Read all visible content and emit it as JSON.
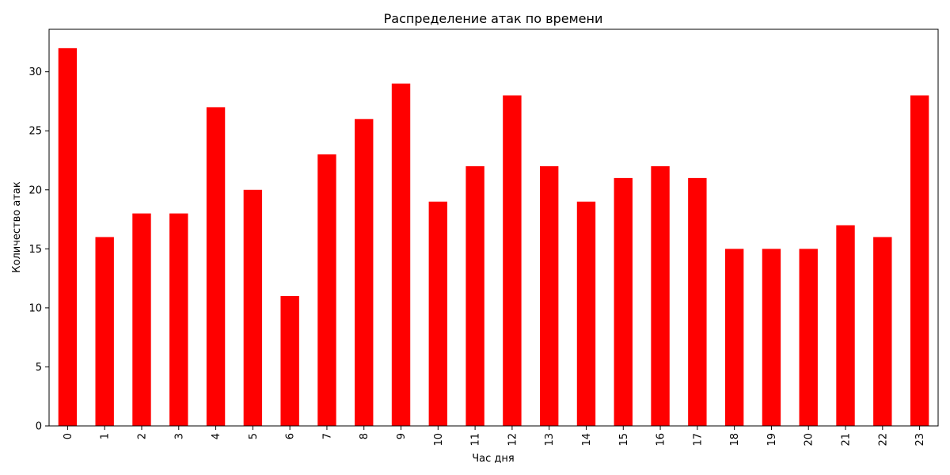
{
  "chart_data": {
    "type": "bar",
    "title": "Распределение атак по времени",
    "xlabel": "Час дня",
    "ylabel": "Количество атак",
    "categories": [
      "0",
      "1",
      "2",
      "3",
      "4",
      "5",
      "6",
      "7",
      "8",
      "9",
      "10",
      "11",
      "12",
      "13",
      "14",
      "15",
      "16",
      "17",
      "18",
      "19",
      "20",
      "21",
      "22",
      "23"
    ],
    "values": [
      32,
      16,
      18,
      18,
      27,
      20,
      11,
      23,
      26,
      29,
      19,
      22,
      28,
      22,
      19,
      21,
      22,
      21,
      15,
      15,
      15,
      17,
      16,
      28
    ],
    "ylim": [
      0,
      33.6
    ],
    "yticks": [
      0,
      5,
      10,
      15,
      20,
      25,
      30
    ],
    "grid": false,
    "legend": "none",
    "x_tick_rotation": "vertical",
    "bar_color": "#ff0000",
    "axis_color": "#000000"
  }
}
